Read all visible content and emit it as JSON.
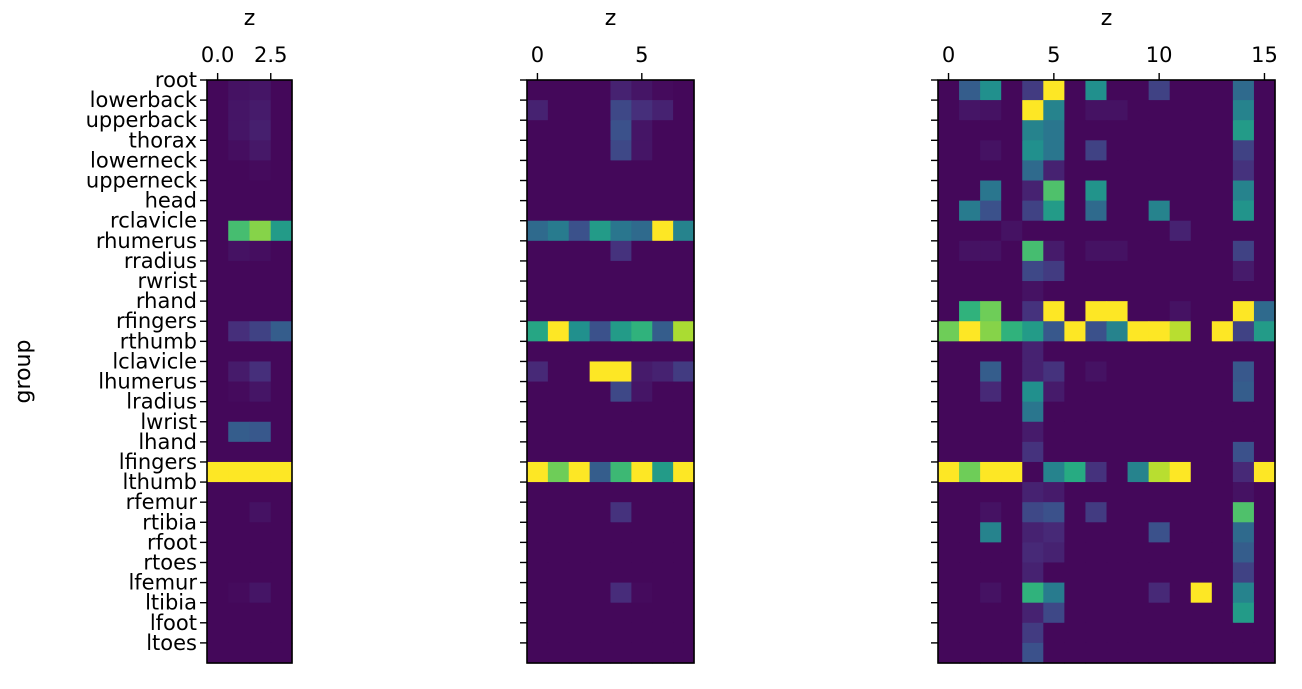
{
  "chart_data": {
    "type": "heatmap",
    "ylabel": "group",
    "colormap": "viridis",
    "colors": {
      "low": "#440154",
      "high": "#fde725"
    },
    "groups": [
      "root",
      "lowerback",
      "upperback",
      "thorax",
      "lowerneck",
      "upperneck",
      "head",
      "rclavicle",
      "rhumerus",
      "rradius",
      "rwrist",
      "rhand",
      "rfingers",
      "rthumb",
      "lclavicle",
      "lhumerus",
      "lradius",
      "lwrist",
      "lhand",
      "lfingers",
      "lthumb",
      "rfemur",
      "rtibia",
      "rfoot",
      "rtoes",
      "lfemur",
      "ltibia",
      "lfoot",
      "ltoes"
    ],
    "panels": [
      {
        "xlabel": "z",
        "xticks": [
          0.0,
          2.5
        ],
        "xtick_labels": [
          "0.0",
          "2.5"
        ],
        "columns": [
          0,
          1,
          2,
          3
        ],
        "values": [
          [
            0.02,
            0.05,
            0.06,
            0.02
          ],
          [
            0.02,
            0.06,
            0.08,
            0.02
          ],
          [
            0.02,
            0.06,
            0.09,
            0.02
          ],
          [
            0.02,
            0.04,
            0.07,
            0.02
          ],
          [
            0.02,
            0.02,
            0.03,
            0.02
          ],
          [
            0.02,
            0.02,
            0.02,
            0.02
          ],
          [
            0.02,
            0.02,
            0.02,
            0.02
          ],
          [
            0.02,
            0.7,
            0.82,
            0.55
          ],
          [
            0.02,
            0.05,
            0.04,
            0.02
          ],
          [
            0.02,
            0.02,
            0.02,
            0.02
          ],
          [
            0.02,
            0.02,
            0.02,
            0.02
          ],
          [
            0.02,
            0.02,
            0.02,
            0.02
          ],
          [
            0.02,
            0.14,
            0.2,
            0.3
          ],
          [
            0.02,
            0.02,
            0.02,
            0.02
          ],
          [
            0.02,
            0.08,
            0.14,
            0.02
          ],
          [
            0.02,
            0.03,
            0.06,
            0.02
          ],
          [
            0.02,
            0.02,
            0.02,
            0.02
          ],
          [
            0.02,
            0.3,
            0.28,
            0.02
          ],
          [
            0.02,
            0.02,
            0.02,
            0.02
          ],
          [
            1.0,
            1.0,
            1.0,
            1.0
          ],
          [
            0.02,
            0.02,
            0.02,
            0.02
          ],
          [
            0.02,
            0.02,
            0.05,
            0.02
          ],
          [
            0.02,
            0.02,
            0.02,
            0.02
          ],
          [
            0.02,
            0.02,
            0.02,
            0.02
          ],
          [
            0.02,
            0.02,
            0.02,
            0.02
          ],
          [
            0.02,
            0.03,
            0.06,
            0.02
          ],
          [
            0.02,
            0.02,
            0.02,
            0.02
          ],
          [
            0.02,
            0.02,
            0.02,
            0.02
          ],
          [
            0.02,
            0.02,
            0.02,
            0.02
          ]
        ]
      },
      {
        "xlabel": "z",
        "xticks": [
          0,
          5
        ],
        "xtick_labels": [
          "0",
          "5"
        ],
        "columns": [
          0,
          1,
          2,
          3,
          4,
          5,
          6,
          7
        ],
        "values": [
          [
            0.02,
            0.02,
            0.02,
            0.02,
            0.1,
            0.06,
            0.03,
            0.02
          ],
          [
            0.1,
            0.02,
            0.02,
            0.02,
            0.22,
            0.14,
            0.1,
            0.02
          ],
          [
            0.02,
            0.02,
            0.02,
            0.02,
            0.25,
            0.06,
            0.02,
            0.02
          ],
          [
            0.02,
            0.02,
            0.02,
            0.02,
            0.22,
            0.06,
            0.02,
            0.02
          ],
          [
            0.02,
            0.02,
            0.02,
            0.02,
            0.02,
            0.02,
            0.02,
            0.02
          ],
          [
            0.02,
            0.02,
            0.02,
            0.02,
            0.02,
            0.02,
            0.02,
            0.02
          ],
          [
            0.02,
            0.02,
            0.02,
            0.02,
            0.02,
            0.02,
            0.02,
            0.02
          ],
          [
            0.35,
            0.42,
            0.25,
            0.55,
            0.4,
            0.35,
            1.0,
            0.45
          ],
          [
            0.02,
            0.02,
            0.02,
            0.02,
            0.15,
            0.02,
            0.02,
            0.02
          ],
          [
            0.02,
            0.02,
            0.02,
            0.02,
            0.02,
            0.02,
            0.02,
            0.02
          ],
          [
            0.02,
            0.02,
            0.02,
            0.02,
            0.02,
            0.02,
            0.02,
            0.02
          ],
          [
            0.02,
            0.02,
            0.02,
            0.02,
            0.02,
            0.02,
            0.02,
            0.02
          ],
          [
            0.6,
            1.0,
            0.5,
            0.25,
            0.55,
            0.65,
            0.3,
            0.88
          ],
          [
            0.02,
            0.02,
            0.02,
            0.02,
            0.02,
            0.02,
            0.02,
            0.02
          ],
          [
            0.12,
            0.02,
            0.02,
            1.0,
            1.0,
            0.08,
            0.1,
            0.18
          ],
          [
            0.02,
            0.02,
            0.02,
            0.02,
            0.22,
            0.06,
            0.02,
            0.02
          ],
          [
            0.02,
            0.02,
            0.02,
            0.02,
            0.02,
            0.02,
            0.02,
            0.02
          ],
          [
            0.02,
            0.02,
            0.02,
            0.02,
            0.02,
            0.02,
            0.02,
            0.02
          ],
          [
            0.02,
            0.02,
            0.02,
            0.02,
            0.02,
            0.02,
            0.02,
            0.02
          ],
          [
            1.0,
            0.78,
            1.0,
            0.3,
            0.68,
            1.0,
            0.55,
            1.0
          ],
          [
            0.02,
            0.02,
            0.02,
            0.02,
            0.02,
            0.02,
            0.02,
            0.02
          ],
          [
            0.02,
            0.02,
            0.02,
            0.02,
            0.15,
            0.02,
            0.02,
            0.02
          ],
          [
            0.02,
            0.02,
            0.02,
            0.02,
            0.02,
            0.02,
            0.02,
            0.02
          ],
          [
            0.02,
            0.02,
            0.02,
            0.02,
            0.02,
            0.02,
            0.02,
            0.02
          ],
          [
            0.02,
            0.02,
            0.02,
            0.02,
            0.02,
            0.02,
            0.02,
            0.02
          ],
          [
            0.02,
            0.02,
            0.02,
            0.02,
            0.13,
            0.03,
            0.02,
            0.02
          ],
          [
            0.02,
            0.02,
            0.02,
            0.02,
            0.02,
            0.02,
            0.02,
            0.02
          ],
          [
            0.02,
            0.02,
            0.02,
            0.02,
            0.02,
            0.02,
            0.02,
            0.02
          ],
          [
            0.02,
            0.02,
            0.02,
            0.02,
            0.02,
            0.02,
            0.02,
            0.02
          ]
        ]
      },
      {
        "xlabel": "z",
        "xticks": [
          0,
          5,
          10,
          15
        ],
        "xtick_labels": [
          "0",
          "5",
          "10",
          "15"
        ],
        "columns": [
          0,
          1,
          2,
          3,
          4,
          5,
          6,
          7,
          8,
          9,
          10,
          11,
          12,
          13,
          14,
          15
        ],
        "values": [
          [
            0.02,
            0.3,
            0.5,
            0.02,
            0.18,
            1.0,
            0.02,
            0.5,
            0.02,
            0.02,
            0.2,
            0.02,
            0.02,
            0.02,
            0.35,
            0.02
          ],
          [
            0.02,
            0.06,
            0.05,
            0.02,
            1.0,
            0.45,
            0.02,
            0.05,
            0.05,
            0.02,
            0.02,
            0.02,
            0.02,
            0.02,
            0.45,
            0.02
          ],
          [
            0.02,
            0.02,
            0.02,
            0.02,
            0.45,
            0.4,
            0.02,
            0.02,
            0.02,
            0.02,
            0.02,
            0.02,
            0.02,
            0.02,
            0.55,
            0.02
          ],
          [
            0.02,
            0.02,
            0.05,
            0.02,
            0.5,
            0.4,
            0.02,
            0.2,
            0.02,
            0.02,
            0.02,
            0.02,
            0.02,
            0.02,
            0.2,
            0.02
          ],
          [
            0.02,
            0.02,
            0.02,
            0.02,
            0.35,
            0.1,
            0.02,
            0.02,
            0.02,
            0.02,
            0.02,
            0.02,
            0.02,
            0.02,
            0.15,
            0.02
          ],
          [
            0.02,
            0.02,
            0.4,
            0.02,
            0.1,
            0.72,
            0.02,
            0.52,
            0.02,
            0.02,
            0.02,
            0.02,
            0.02,
            0.02,
            0.45,
            0.02
          ],
          [
            0.02,
            0.42,
            0.25,
            0.02,
            0.2,
            0.55,
            0.02,
            0.35,
            0.02,
            0.02,
            0.45,
            0.02,
            0.02,
            0.02,
            0.52,
            0.02
          ],
          [
            0.02,
            0.02,
            0.02,
            0.05,
            0.02,
            0.02,
            0.02,
            0.02,
            0.02,
            0.02,
            0.02,
            0.1,
            0.02,
            0.02,
            0.02,
            0.02
          ],
          [
            0.02,
            0.05,
            0.05,
            0.02,
            0.7,
            0.08,
            0.02,
            0.05,
            0.05,
            0.02,
            0.02,
            0.02,
            0.02,
            0.02,
            0.2,
            0.02
          ],
          [
            0.02,
            0.02,
            0.02,
            0.02,
            0.22,
            0.18,
            0.02,
            0.02,
            0.02,
            0.02,
            0.02,
            0.02,
            0.02,
            0.02,
            0.08,
            0.02
          ],
          [
            0.02,
            0.02,
            0.02,
            0.02,
            0.05,
            0.02,
            0.02,
            0.02,
            0.02,
            0.02,
            0.02,
            0.02,
            0.02,
            0.02,
            0.02,
            0.02
          ],
          [
            0.02,
            0.65,
            0.78,
            0.02,
            0.15,
            1.0,
            0.02,
            1.0,
            1.0,
            0.02,
            0.02,
            0.05,
            0.02,
            0.02,
            1.0,
            0.35
          ],
          [
            0.78,
            1.0,
            0.82,
            0.65,
            0.55,
            0.28,
            1.0,
            0.25,
            0.45,
            1.0,
            1.0,
            0.9,
            0.02,
            1.0,
            0.2,
            0.55
          ],
          [
            0.02,
            0.02,
            0.02,
            0.02,
            0.1,
            0.02,
            0.02,
            0.02,
            0.02,
            0.02,
            0.02,
            0.02,
            0.02,
            0.02,
            0.02,
            0.02
          ],
          [
            0.02,
            0.02,
            0.3,
            0.02,
            0.1,
            0.15,
            0.02,
            0.05,
            0.02,
            0.02,
            0.02,
            0.02,
            0.02,
            0.02,
            0.28,
            0.02
          ],
          [
            0.02,
            0.02,
            0.12,
            0.02,
            0.5,
            0.08,
            0.02,
            0.02,
            0.02,
            0.02,
            0.02,
            0.02,
            0.02,
            0.02,
            0.3,
            0.02
          ],
          [
            0.02,
            0.02,
            0.02,
            0.02,
            0.4,
            0.02,
            0.02,
            0.02,
            0.02,
            0.02,
            0.02,
            0.02,
            0.02,
            0.02,
            0.02,
            0.02
          ],
          [
            0.02,
            0.02,
            0.02,
            0.02,
            0.08,
            0.02,
            0.02,
            0.02,
            0.02,
            0.02,
            0.02,
            0.02,
            0.02,
            0.02,
            0.02,
            0.02
          ],
          [
            0.02,
            0.02,
            0.02,
            0.02,
            0.15,
            0.02,
            0.02,
            0.02,
            0.02,
            0.02,
            0.02,
            0.02,
            0.02,
            0.02,
            0.25,
            0.02
          ],
          [
            1.0,
            0.78,
            1.0,
            1.0,
            0.02,
            0.45,
            0.62,
            0.15,
            0.02,
            0.45,
            0.9,
            1.0,
            0.02,
            0.02,
            0.12,
            1.0
          ],
          [
            0.02,
            0.02,
            0.02,
            0.02,
            0.1,
            0.08,
            0.02,
            0.02,
            0.02,
            0.02,
            0.02,
            0.02,
            0.02,
            0.02,
            0.05,
            0.02
          ],
          [
            0.02,
            0.02,
            0.05,
            0.02,
            0.22,
            0.25,
            0.02,
            0.18,
            0.02,
            0.02,
            0.02,
            0.02,
            0.02,
            0.02,
            0.72,
            0.02
          ],
          [
            0.02,
            0.02,
            0.45,
            0.02,
            0.1,
            0.12,
            0.02,
            0.02,
            0.02,
            0.02,
            0.25,
            0.02,
            0.02,
            0.02,
            0.35,
            0.02
          ],
          [
            0.02,
            0.02,
            0.02,
            0.02,
            0.12,
            0.1,
            0.02,
            0.02,
            0.02,
            0.02,
            0.02,
            0.02,
            0.02,
            0.02,
            0.3,
            0.02
          ],
          [
            0.02,
            0.02,
            0.02,
            0.02,
            0.1,
            0.02,
            0.02,
            0.02,
            0.02,
            0.02,
            0.02,
            0.02,
            0.02,
            0.02,
            0.2,
            0.02
          ],
          [
            0.02,
            0.02,
            0.05,
            0.02,
            0.65,
            0.42,
            0.02,
            0.02,
            0.02,
            0.02,
            0.12,
            0.02,
            1.0,
            0.02,
            0.45,
            0.02
          ],
          [
            0.02,
            0.02,
            0.02,
            0.02,
            0.1,
            0.22,
            0.02,
            0.02,
            0.02,
            0.02,
            0.02,
            0.02,
            0.02,
            0.02,
            0.55,
            0.02
          ],
          [
            0.02,
            0.02,
            0.02,
            0.02,
            0.18,
            0.02,
            0.02,
            0.02,
            0.02,
            0.02,
            0.02,
            0.02,
            0.02,
            0.02,
            0.02,
            0.02
          ],
          [
            0.02,
            0.02,
            0.02,
            0.02,
            0.25,
            0.02,
            0.02,
            0.02,
            0.02,
            0.02,
            0.02,
            0.02,
            0.02,
            0.02,
            0.02,
            0.02
          ]
        ]
      }
    ]
  }
}
